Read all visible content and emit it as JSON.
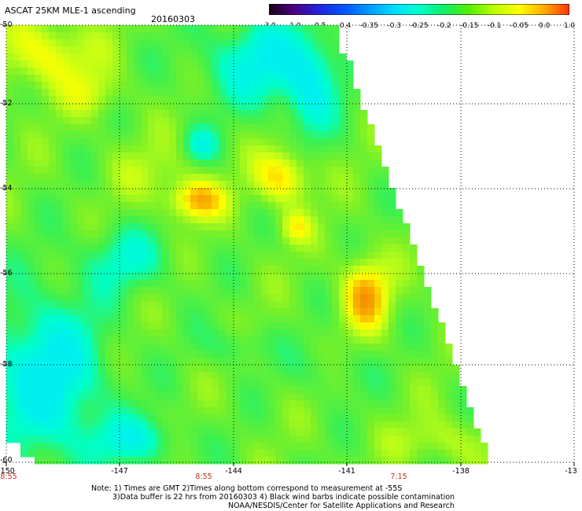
{
  "title": "ASCAT 25KM MLE-1 ascending",
  "date": "20160303",
  "colorbar": {
    "labels": [
      "-3.0",
      "-1.0",
      "-0.5",
      "-0.4",
      "-0.35",
      "-0.3",
      "-0.25",
      "-0.2",
      "-0.15",
      "-0.1",
      "-0.05",
      "0.0",
      "1.0"
    ],
    "colors": [
      "#1a0016",
      "#4b0082",
      "#2222dd",
      "#0055ff",
      "#0099ff",
      "#00ddff",
      "#00ffcc",
      "#11ee66",
      "#55ee00",
      "#bbff00",
      "#ffff00",
      "#ffaa00",
      "#ff3300"
    ]
  },
  "lat_labels": [
    "-50",
    "-52",
    "-54",
    "-56",
    "-58",
    "-60"
  ],
  "lon_labels": [
    "-150",
    "-147",
    "-144",
    "-141",
    "-138",
    "-13"
  ],
  "time_labels": [
    "8:55",
    "8:55",
    "7:15"
  ],
  "notes": {
    "line1": "Note: 1) Times are GMT 2)Times along bottom correspond to measurement at -55S",
    "line2": "3)Data buffer is 22 hrs from 20160303 4) Black wind barbs indicate possible contamination",
    "line3": "NOAA/NESDIS/Center for Satellite Applications and Research"
  }
}
